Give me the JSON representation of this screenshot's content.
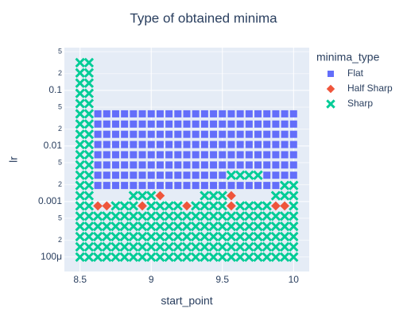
{
  "chart_data": {
    "type": "scatter",
    "title": "Type of obtained minima",
    "x_label": "start_point",
    "y_label": "lr",
    "legend_title": "minima_type",
    "xlim": [
      8.39,
      10.11
    ],
    "xticks": [
      8.5,
      9,
      9.5,
      10
    ],
    "ylim": [
      5.5e-05,
      0.59
    ],
    "log_y": true,
    "grid": true,
    "yticks": [
      {
        "value": 0.5,
        "label": "5"
      },
      {
        "value": 0.2,
        "label": "2"
      },
      0.1,
      {
        "value": 0.05,
        "label": "5"
      },
      {
        "value": 0.02,
        "label": "2"
      },
      0.01,
      {
        "value": 0.005,
        "label": "5"
      },
      {
        "value": 0.002,
        "label": "2"
      },
      0.001,
      {
        "value": 0.0005,
        "label": "5"
      },
      {
        "value": 0.0002,
        "label": "2"
      },
      {
        "value": 0.0001,
        "label": "100μ"
      }
    ],
    "series": [
      {
        "name": "Flat",
        "color": "#636efa",
        "marker": "square",
        "x": [
          8.625,
          8.6875,
          8.75,
          8.8125,
          8.875,
          8.9375,
          9,
          9.0625,
          9.125,
          9.1875,
          9.25,
          9.3125,
          9.375,
          9.4375,
          9.5,
          9.5625,
          9.625,
          9.6875,
          9.75,
          9.8125,
          9.875,
          8.625,
          8.6875,
          8.75,
          8.8125,
          8.875,
          8.9375,
          9,
          9.0625,
          9.125,
          9.1875,
          9.25,
          9.3125,
          9.375,
          9.4375,
          9.5,
          9.8125,
          9.875,
          9.9375,
          10,
          8.625,
          8.6875,
          8.75,
          8.8125,
          8.875,
          8.9375,
          9,
          9.0625,
          9.125,
          9.1875,
          9.25,
          9.3125,
          9.375,
          9.4375,
          9.5,
          9.5625,
          9.625,
          9.6875,
          9.75,
          9.8125,
          9.875,
          9.9375,
          10,
          8.625,
          8.6875,
          8.75,
          8.8125,
          8.875,
          8.9375,
          9,
          9.0625,
          9.125,
          9.1875,
          9.25,
          9.3125,
          9.375,
          9.4375,
          9.5,
          9.5625,
          9.625,
          9.6875,
          9.75,
          9.8125,
          9.875,
          9.9375,
          10,
          8.625,
          8.6875,
          8.75,
          8.8125,
          8.875,
          8.9375,
          9,
          9.0625,
          9.125,
          9.1875,
          9.25,
          9.3125,
          9.375,
          9.4375,
          9.5,
          9.5625,
          9.625,
          9.6875,
          9.75,
          9.8125,
          9.875,
          9.9375,
          10,
          8.625,
          8.6875,
          8.75,
          8.8125,
          8.875,
          8.9375,
          9,
          9.0625,
          9.125,
          9.1875,
          9.25,
          9.3125,
          9.375,
          9.4375,
          9.5,
          9.5625,
          9.625,
          9.6875,
          9.75,
          9.8125,
          9.875,
          9.9375,
          10,
          8.625,
          8.6875,
          8.75,
          8.8125,
          8.875,
          8.9375,
          9,
          9.0625,
          9.125,
          9.1875,
          9.25,
          9.3125,
          9.375,
          9.4375,
          9.5,
          9.5625,
          9.625,
          9.6875,
          9.75,
          9.8125,
          9.875,
          9.9375,
          10,
          8.625,
          8.6875,
          8.75,
          8.8125,
          8.875,
          8.9375,
          9,
          9.0625,
          9.125,
          9.1875,
          9.25,
          9.3125,
          9.375,
          9.4375,
          9.5,
          9.5625,
          9.625,
          9.6875,
          9.75,
          9.8125,
          9.875,
          9.9375,
          10
        ],
        "y": [
          0.001947,
          0.001947,
          0.001947,
          0.001947,
          0.001947,
          0.001947,
          0.001947,
          0.001947,
          0.001947,
          0.001947,
          0.001947,
          0.001947,
          0.001947,
          0.001947,
          0.001947,
          0.001947,
          0.001947,
          0.001947,
          0.001947,
          0.001947,
          0.001947,
          0.002976,
          0.002976,
          0.002976,
          0.002976,
          0.002976,
          0.002976,
          0.002976,
          0.002976,
          0.002976,
          0.002976,
          0.002976,
          0.002976,
          0.002976,
          0.002976,
          0.002976,
          0.002976,
          0.002976,
          0.002976,
          0.002976,
          0.004549,
          0.004549,
          0.004549,
          0.004549,
          0.004549,
          0.004549,
          0.004549,
          0.004549,
          0.004549,
          0.004549,
          0.004549,
          0.004549,
          0.004549,
          0.004549,
          0.004549,
          0.004549,
          0.004549,
          0.004549,
          0.004549,
          0.004549,
          0.004549,
          0.004549,
          0.004549,
          0.006952,
          0.006952,
          0.006952,
          0.006952,
          0.006952,
          0.006952,
          0.006952,
          0.006952,
          0.006952,
          0.006952,
          0.006952,
          0.006952,
          0.006952,
          0.006952,
          0.006952,
          0.006952,
          0.006952,
          0.006952,
          0.006952,
          0.006952,
          0.006952,
          0.006952,
          0.006952,
          0.010624,
          0.010624,
          0.010624,
          0.010624,
          0.010624,
          0.010624,
          0.010624,
          0.010624,
          0.010624,
          0.010624,
          0.010624,
          0.010624,
          0.010624,
          0.010624,
          0.010624,
          0.010624,
          0.010624,
          0.010624,
          0.010624,
          0.010624,
          0.010624,
          0.010624,
          0.010624,
          0.016238,
          0.016238,
          0.016238,
          0.016238,
          0.016238,
          0.016238,
          0.016238,
          0.016238,
          0.016238,
          0.016238,
          0.016238,
          0.016238,
          0.016238,
          0.016238,
          0.016238,
          0.016238,
          0.016238,
          0.016238,
          0.016238,
          0.016238,
          0.016238,
          0.016238,
          0.016238,
          0.024816,
          0.024816,
          0.024816,
          0.024816,
          0.024816,
          0.024816,
          0.024816,
          0.024816,
          0.024816,
          0.024816,
          0.024816,
          0.024816,
          0.024816,
          0.024816,
          0.024816,
          0.024816,
          0.024816,
          0.024816,
          0.024816,
          0.024816,
          0.024816,
          0.024816,
          0.024816,
          0.037927,
          0.037927,
          0.037927,
          0.037927,
          0.037927,
          0.037927,
          0.037927,
          0.037927,
          0.037927,
          0.037927,
          0.037927,
          0.037927,
          0.037927,
          0.037927,
          0.037927,
          0.037927,
          0.037927,
          0.037927,
          0.037927,
          0.037927,
          0.037927,
          0.037927,
          0.037927
        ]
      },
      {
        "name": "Half Sharp",
        "color": "#EF553B",
        "marker": "diamond",
        "x": [
          8.625,
          8.6875,
          8.9375,
          9.25,
          9.5625,
          9.875,
          9.9375,
          9.0625,
          9.5625
        ],
        "y": [
          0.000834,
          0.000834,
          0.000834,
          0.000834,
          0.000834,
          0.000834,
          0.000834,
          0.001274,
          0.001274
        ]
      },
      {
        "name": "Sharp",
        "color": "#00cc96",
        "marker": "x",
        "x": [
          8.5,
          8.5625,
          8.625,
          8.6875,
          8.75,
          8.8125,
          8.875,
          8.9375,
          9,
          9.0625,
          9.125,
          9.1875,
          9.25,
          9.3125,
          9.375,
          9.4375,
          9.5,
          9.5625,
          9.625,
          9.6875,
          9.75,
          9.8125,
          9.875,
          9.9375,
          10,
          8.5,
          8.5625,
          8.625,
          8.6875,
          8.75,
          8.8125,
          8.875,
          8.9375,
          9,
          9.0625,
          9.125,
          9.1875,
          9.25,
          9.3125,
          9.375,
          9.4375,
          9.5,
          9.5625,
          9.625,
          9.6875,
          9.75,
          9.8125,
          9.875,
          9.9375,
          10,
          8.5,
          8.5625,
          8.625,
          8.6875,
          8.75,
          8.8125,
          8.875,
          8.9375,
          9,
          9.0625,
          9.125,
          9.1875,
          9.25,
          9.3125,
          9.375,
          9.4375,
          9.5,
          9.5625,
          9.625,
          9.6875,
          9.75,
          9.8125,
          9.875,
          9.9375,
          10,
          8.5,
          8.5625,
          8.625,
          8.6875,
          8.75,
          8.8125,
          8.875,
          8.9375,
          9,
          9.0625,
          9.125,
          9.1875,
          9.25,
          9.3125,
          9.375,
          9.4375,
          9.5,
          9.5625,
          9.625,
          9.6875,
          9.75,
          9.8125,
          9.875,
          9.9375,
          10,
          8.5,
          8.5625,
          8.625,
          8.6875,
          8.75,
          8.8125,
          8.875,
          8.9375,
          9,
          9.0625,
          9.125,
          9.1875,
          9.25,
          9.3125,
          9.375,
          9.4375,
          9.5,
          9.5625,
          9.625,
          9.6875,
          9.75,
          9.8125,
          9.875,
          9.9375,
          10,
          8.5,
          8.5625,
          8.75,
          8.8125,
          8.875,
          9,
          9.0625,
          9.125,
          9.1875,
          9.3125,
          9.375,
          9.4375,
          9.5,
          9.625,
          9.6875,
          9.75,
          9.8125,
          10,
          8.5,
          8.5625,
          8.875,
          8.9375,
          9,
          9.375,
          9.4375,
          9.5,
          9.875,
          9.9375,
          10,
          8.5,
          8.5625,
          9.9375,
          10,
          8.5,
          8.5625,
          9.5625,
          9.625,
          9.6875,
          9.75,
          8.5,
          8.5625,
          8.5,
          8.5625,
          8.5,
          8.5625,
          8.5,
          8.5625,
          8.5,
          8.5625,
          8.5,
          8.5625,
          8.5,
          8.5625,
          8.5,
          8.5625,
          8.5,
          8.5625,
          8.5,
          8.5625,
          8.5,
          8.5625
        ],
        "y": [
          0.0001,
          0.0001,
          0.0001,
          0.0001,
          0.0001,
          0.0001,
          0.0001,
          0.0001,
          0.0001,
          0.0001,
          0.0001,
          0.0001,
          0.0001,
          0.0001,
          0.0001,
          0.0001,
          0.0001,
          0.0001,
          0.0001,
          0.0001,
          0.0001,
          0.0001,
          0.0001,
          0.0001,
          0.0001,
          0.0001528,
          0.0001528,
          0.0001528,
          0.0001528,
          0.0001528,
          0.0001528,
          0.0001528,
          0.0001528,
          0.0001528,
          0.0001528,
          0.0001528,
          0.0001528,
          0.0001528,
          0.0001528,
          0.0001528,
          0.0001528,
          0.0001528,
          0.0001528,
          0.0001528,
          0.0001528,
          0.0001528,
          0.0001528,
          0.0001528,
          0.0001528,
          0.0001528,
          0.0002336,
          0.0002336,
          0.0002336,
          0.0002336,
          0.0002336,
          0.0002336,
          0.0002336,
          0.0002336,
          0.0002336,
          0.0002336,
          0.0002336,
          0.0002336,
          0.0002336,
          0.0002336,
          0.0002336,
          0.0002336,
          0.0002336,
          0.0002336,
          0.0002336,
          0.0002336,
          0.0002336,
          0.0002336,
          0.0002336,
          0.0002336,
          0.0002336,
          0.000357,
          0.000357,
          0.000357,
          0.000357,
          0.000357,
          0.000357,
          0.000357,
          0.000357,
          0.000357,
          0.000357,
          0.000357,
          0.000357,
          0.000357,
          0.000357,
          0.000357,
          0.000357,
          0.000357,
          0.000357,
          0.000357,
          0.000357,
          0.000357,
          0.000357,
          0.000357,
          0.000357,
          0.000357,
          0.0005456,
          0.0005456,
          0.0005456,
          0.0005456,
          0.0005456,
          0.0005456,
          0.0005456,
          0.0005456,
          0.0005456,
          0.0005456,
          0.0005456,
          0.0005456,
          0.0005456,
          0.0005456,
          0.0005456,
          0.0005456,
          0.0005456,
          0.0005456,
          0.0005456,
          0.0005456,
          0.0005456,
          0.0005456,
          0.0005456,
          0.0005456,
          0.0005456,
          0.000834,
          0.000834,
          0.000834,
          0.000834,
          0.000834,
          0.000834,
          0.000834,
          0.000834,
          0.000834,
          0.000834,
          0.000834,
          0.000834,
          0.000834,
          0.000834,
          0.000834,
          0.000834,
          0.000834,
          0.000834,
          0.001274,
          0.001274,
          0.001274,
          0.001274,
          0.001274,
          0.001274,
          0.001274,
          0.001274,
          0.001274,
          0.001274,
          0.001274,
          0.001947,
          0.001947,
          0.001947,
          0.001947,
          0.002976,
          0.002976,
          0.002976,
          0.002976,
          0.002976,
          0.002976,
          0.004549,
          0.004549,
          0.006952,
          0.006952,
          0.010624,
          0.010624,
          0.016238,
          0.016238,
          0.024816,
          0.024816,
          0.037927,
          0.037927,
          0.057964,
          0.057964,
          0.088587,
          0.088587,
          0.135388,
          0.135388,
          0.206914,
          0.206914,
          0.316228,
          0.316228
        ]
      }
    ]
  }
}
